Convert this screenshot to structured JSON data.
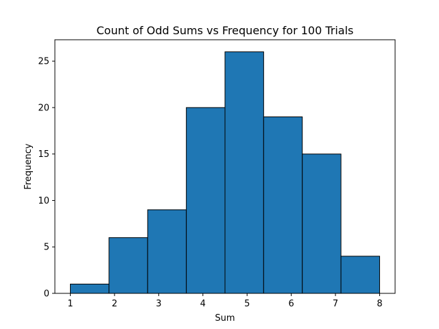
{
  "chart_data": {
    "type": "bar",
    "title": "Count of Odd Sums vs Frequency for 100 Trials",
    "xlabel": "Sum",
    "ylabel": "Frequency",
    "bin_edges": [
      1,
      1.875,
      2.75,
      3.625,
      4.5,
      5.375,
      6.25,
      7.125,
      8
    ],
    "values": [
      1,
      6,
      9,
      20,
      26,
      19,
      15,
      4
    ],
    "xlim": [
      0.65,
      8.35
    ],
    "ylim": [
      0,
      27.3
    ],
    "xticks": [
      1,
      2,
      3,
      4,
      5,
      6,
      7,
      8
    ],
    "yticks": [
      0,
      5,
      10,
      15,
      20,
      25
    ],
    "bar_color": "#1f77b4",
    "edge_color": "#000000",
    "grid": false
  }
}
